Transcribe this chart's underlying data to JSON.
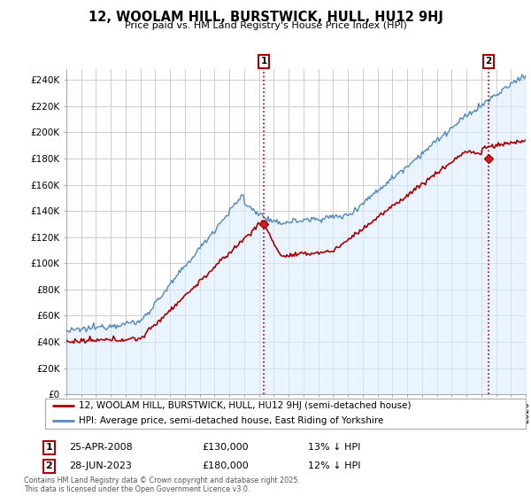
{
  "title": "12, WOOLAM HILL, BURSTWICK, HULL, HU12 9HJ",
  "subtitle": "Price paid vs. HM Land Registry's House Price Index (HPI)",
  "ylabel_ticks": [
    "£0",
    "£20K",
    "£40K",
    "£60K",
    "£80K",
    "£100K",
    "£120K",
    "£140K",
    "£160K",
    "£180K",
    "£200K",
    "£220K",
    "£240K"
  ],
  "ylim": [
    0,
    248000
  ],
  "xlim_start": 1995,
  "xlim_end": 2026,
  "sale1_date": "25-APR-2008",
  "sale1_price": 130000,
  "sale1_hpi_diff": "13% ↓ HPI",
  "sale1_x": 2008.32,
  "sale2_date": "28-JUN-2023",
  "sale2_price": 180000,
  "sale2_hpi_diff": "12% ↓ HPI",
  "sale2_x": 2023.49,
  "legend_line1": "12, WOOLAM HILL, BURSTWICK, HULL, HU12 9HJ (semi-detached house)",
  "legend_line2": "HPI: Average price, semi-detached house, East Riding of Yorkshire",
  "footnote": "Contains HM Land Registry data © Crown copyright and database right 2025.\nThis data is licensed under the Open Government Licence v3.0.",
  "line_color_red": "#aa0000",
  "line_color_blue": "#5588bb",
  "fill_color_blue": "#ddeeff",
  "background_color": "#ffffff",
  "grid_color": "#cccccc"
}
